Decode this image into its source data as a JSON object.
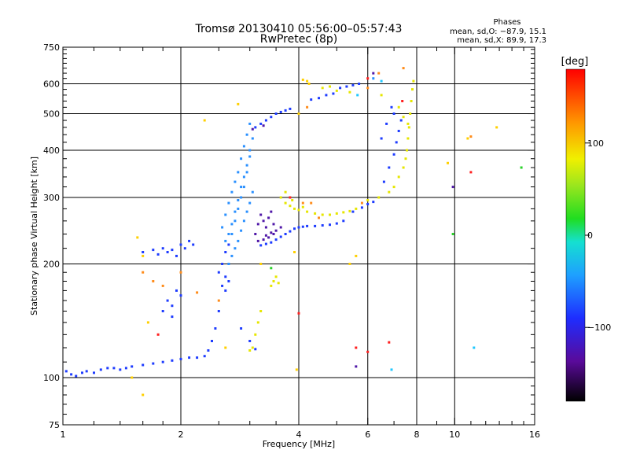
{
  "chart_data": {
    "type": "scatter",
    "title": "Tromsø 20130410 05:56:00–05:57:43",
    "subtitle": "RwPretec (8p)",
    "xlabel": "Frequency [MHz]",
    "ylabel": "Stationary phase Virtual Height [km]",
    "x_scale": "log",
    "y_scale": "log",
    "xlim": [
      1,
      16
    ],
    "ylim": [
      75,
      750
    ],
    "x_major_ticks": [
      1,
      2,
      4,
      6,
      8,
      10,
      16
    ],
    "y_major_ticks": [
      75,
      100,
      200,
      300,
      400,
      500,
      600,
      750
    ],
    "grid_x": [
      2,
      4,
      6,
      8,
      10
    ],
    "grid_y": [
      100,
      200,
      300,
      400,
      500,
      600
    ],
    "grid": true,
    "phase_box": {
      "title": "Phases",
      "lines": [
        "mean, sd,O: −87.9, 15.1",
        "mean, sd,X:  89.9, 17.3"
      ]
    },
    "colorbar": {
      "label": "[deg]",
      "range": [
        -180,
        180
      ],
      "ticks": [
        100,
        0,
        -100
      ],
      "tick_labels": [
        "100",
        "0",
        "−100"
      ]
    },
    "series": [
      {
        "color": "#1e3cff",
        "phase": -95,
        "points": [
          [
            1.02,
            104
          ],
          [
            1.05,
            102
          ],
          [
            1.08,
            101
          ],
          [
            1.12,
            103
          ],
          [
            1.15,
            104
          ],
          [
            1.2,
            103
          ],
          [
            1.25,
            105
          ],
          [
            1.3,
            106
          ],
          [
            1.35,
            106
          ],
          [
            1.4,
            105
          ],
          [
            1.45,
            106
          ],
          [
            1.5,
            107
          ],
          [
            1.6,
            108
          ],
          [
            1.7,
            109
          ],
          [
            1.8,
            110
          ],
          [
            1.9,
            111
          ],
          [
            2.0,
            112
          ],
          [
            2.1,
            113
          ],
          [
            2.2,
            113
          ],
          [
            2.3,
            114
          ],
          [
            2.35,
            118
          ],
          [
            2.4,
            125
          ],
          [
            2.45,
            135
          ],
          [
            2.5,
            150
          ],
          [
            2.55,
            175
          ],
          [
            2.6,
            185
          ],
          [
            2.5,
            190
          ],
          [
            2.55,
            200
          ],
          [
            2.6,
            215
          ],
          [
            2.65,
            225
          ],
          [
            2.6,
            170
          ],
          [
            2.65,
            180
          ],
          [
            1.6,
            215
          ],
          [
            1.7,
            218
          ],
          [
            1.75,
            212
          ],
          [
            1.8,
            220
          ],
          [
            1.85,
            215
          ],
          [
            1.9,
            218
          ],
          [
            1.95,
            210
          ],
          [
            2.0,
            225
          ],
          [
            2.05,
            220
          ],
          [
            2.1,
            230
          ],
          [
            2.15,
            225
          ],
          [
            1.85,
            160
          ],
          [
            1.9,
            155
          ],
          [
            1.95,
            170
          ],
          [
            2.0,
            165
          ],
          [
            1.8,
            150
          ],
          [
            1.9,
            145
          ],
          [
            2.85,
            135
          ],
          [
            3.0,
            125
          ],
          [
            3.1,
            119
          ],
          [
            3.2,
            224
          ],
          [
            3.3,
            226
          ],
          [
            3.4,
            228
          ],
          [
            3.5,
            232
          ],
          [
            3.6,
            236
          ],
          [
            3.7,
            240
          ],
          [
            3.8,
            244
          ],
          [
            3.9,
            248
          ],
          [
            4.0,
            250
          ],
          [
            4.1,
            251
          ],
          [
            4.2,
            252
          ],
          [
            4.4,
            252
          ],
          [
            4.6,
            253
          ],
          [
            4.8,
            254
          ],
          [
            5.0,
            256
          ],
          [
            5.2,
            260
          ],
          [
            5.5,
            275
          ],
          [
            5.8,
            282
          ],
          [
            6.0,
            288
          ],
          [
            6.2,
            292
          ],
          [
            3.1,
            460
          ],
          [
            3.2,
            470
          ],
          [
            3.3,
            480
          ],
          [
            3.4,
            490
          ],
          [
            3.5,
            500
          ],
          [
            3.6,
            505
          ],
          [
            3.7,
            510
          ],
          [
            3.8,
            515
          ],
          [
            4.3,
            545
          ],
          [
            4.5,
            550
          ],
          [
            4.7,
            560
          ],
          [
            4.9,
            565
          ],
          [
            5.1,
            585
          ],
          [
            5.3,
            590
          ],
          [
            5.5,
            595
          ],
          [
            5.7,
            600
          ],
          [
            6.6,
            330
          ],
          [
            6.8,
            360
          ],
          [
            7.0,
            390
          ],
          [
            7.1,
            420
          ],
          [
            7.2,
            450
          ],
          [
            7.3,
            480
          ],
          [
            7.0,
            500
          ],
          [
            6.9,
            520
          ],
          [
            6.7,
            470
          ],
          [
            6.5,
            430
          ]
        ]
      },
      {
        "color": "#2a90ff",
        "phase": -70,
        "points": [
          [
            2.55,
            250
          ],
          [
            2.6,
            270
          ],
          [
            2.65,
            290
          ],
          [
            2.7,
            310
          ],
          [
            2.75,
            330
          ],
          [
            2.8,
            350
          ],
          [
            2.85,
            380
          ],
          [
            2.9,
            410
          ],
          [
            2.95,
            440
          ],
          [
            3.0,
            470
          ],
          [
            2.7,
            240
          ],
          [
            2.75,
            260
          ],
          [
            2.8,
            280
          ],
          [
            2.85,
            300
          ],
          [
            2.9,
            320
          ],
          [
            2.95,
            350
          ],
          [
            3.0,
            400
          ],
          [
            3.05,
            430
          ],
          [
            2.65,
            200
          ],
          [
            2.7,
            210
          ],
          [
            2.75,
            220
          ],
          [
            2.8,
            230
          ],
          [
            2.85,
            245
          ],
          [
            2.9,
            260
          ],
          [
            2.95,
            275
          ],
          [
            3.0,
            290
          ],
          [
            3.05,
            310
          ],
          [
            2.6,
            230
          ],
          [
            2.65,
            240
          ],
          [
            2.7,
            255
          ],
          [
            2.75,
            275
          ],
          [
            2.8,
            295
          ],
          [
            2.85,
            320
          ],
          [
            2.9,
            340
          ],
          [
            2.95,
            365
          ],
          [
            3.0,
            385
          ],
          [
            6.2,
            620
          ]
        ]
      },
      {
        "color": "#5018a8",
        "phase": -140,
        "points": [
          [
            3.1,
            240
          ],
          [
            3.15,
            255
          ],
          [
            3.2,
            270
          ],
          [
            3.25,
            260
          ],
          [
            3.3,
            250
          ],
          [
            3.35,
            265
          ],
          [
            3.4,
            275
          ],
          [
            3.45,
            255
          ],
          [
            3.5,
            245
          ],
          [
            3.3,
            238
          ],
          [
            3.4,
            242
          ],
          [
            3.6,
            250
          ],
          [
            3.15,
            230
          ],
          [
            3.25,
            232
          ],
          [
            3.35,
            235
          ],
          [
            3.45,
            240
          ],
          [
            5.6,
            107
          ],
          [
            9.9,
            320
          ],
          [
            6.2,
            640
          ],
          [
            3.05,
            455
          ],
          [
            3.25,
            465
          ]
        ]
      },
      {
        "color": "#e6e600",
        "phase": 110,
        "points": [
          [
            3.6,
            300
          ],
          [
            3.7,
            290
          ],
          [
            3.8,
            285
          ],
          [
            3.9,
            280
          ],
          [
            4.0,
            278
          ],
          [
            4.2,
            275
          ],
          [
            4.4,
            272
          ],
          [
            4.6,
            270
          ],
          [
            4.8,
            270
          ],
          [
            5.0,
            272
          ],
          [
            5.2,
            274
          ],
          [
            5.4,
            276
          ],
          [
            5.6,
            280
          ],
          [
            6.0,
            295
          ],
          [
            6.4,
            300
          ],
          [
            6.8,
            310
          ],
          [
            7.0,
            320
          ],
          [
            7.2,
            340
          ],
          [
            7.4,
            360
          ],
          [
            7.5,
            380
          ],
          [
            7.55,
            400
          ],
          [
            7.6,
            430
          ],
          [
            7.65,
            460
          ],
          [
            7.7,
            500
          ],
          [
            7.75,
            540
          ],
          [
            7.8,
            580
          ],
          [
            7.85,
            610
          ],
          [
            3.4,
            175
          ],
          [
            3.45,
            180
          ],
          [
            3.5,
            185
          ],
          [
            3.55,
            178
          ],
          [
            3.2,
            150
          ],
          [
            3.15,
            140
          ],
          [
            3.1,
            130
          ],
          [
            3.05,
            120
          ],
          [
            3.0,
            118
          ],
          [
            4.6,
            585
          ],
          [
            4.8,
            590
          ],
          [
            5.0,
            575
          ],
          [
            5.4,
            570
          ],
          [
            6.5,
            560
          ],
          [
            7.2,
            520
          ],
          [
            7.4,
            490
          ],
          [
            7.6,
            470
          ],
          [
            3.7,
            310
          ],
          [
            3.85,
            295
          ],
          [
            4.1,
            283
          ]
        ]
      },
      {
        "color": "#ffd000",
        "phase": 90,
        "points": [
          [
            1.55,
            235
          ],
          [
            1.6,
            210
          ],
          [
            2.8,
            530
          ],
          [
            2.3,
            480
          ],
          [
            9.6,
            370
          ],
          [
            10.8,
            430
          ],
          [
            12.8,
            460
          ],
          [
            4.1,
            615
          ],
          [
            4.2,
            610
          ],
          [
            4.25,
            600
          ],
          [
            4.0,
            500
          ],
          [
            5.4,
            200
          ],
          [
            5.6,
            210
          ],
          [
            3.2,
            200
          ],
          [
            1.65,
            140
          ],
          [
            2.6,
            120
          ],
          [
            1.5,
            100
          ],
          [
            1.6,
            90
          ],
          [
            3.9,
            215
          ],
          [
            3.95,
            105
          ]
        ]
      },
      {
        "color": "#ff8c1a",
        "phase": 140,
        "points": [
          [
            1.6,
            190
          ],
          [
            1.7,
            180
          ],
          [
            1.8,
            175
          ],
          [
            2.0,
            190
          ],
          [
            2.2,
            168
          ],
          [
            2.5,
            160
          ],
          [
            4.1,
            290
          ],
          [
            4.3,
            290
          ],
          [
            4.5,
            265
          ],
          [
            5.8,
            290
          ],
          [
            6.4,
            640
          ],
          [
            7.4,
            660
          ],
          [
            4.2,
            520
          ],
          [
            11.0,
            435
          ],
          [
            6.0,
            585
          ]
        ]
      },
      {
        "color": "#ff2020",
        "phase": 170,
        "points": [
          [
            1.75,
            130
          ],
          [
            5.6,
            120
          ],
          [
            3.8,
            300
          ],
          [
            6.0,
            620
          ],
          [
            11.0,
            350
          ],
          [
            6.8,
            124
          ],
          [
            6.0,
            117
          ],
          [
            4.0,
            148
          ],
          [
            7.35,
            540
          ]
        ]
      },
      {
        "color": "#2ad22a",
        "phase": 10,
        "points": [
          [
            3.4,
            195
          ],
          [
            14.8,
            360
          ],
          [
            9.9,
            240
          ]
        ]
      },
      {
        "color": "#20c8ff",
        "phase": -40,
        "points": [
          [
            6.5,
            610
          ],
          [
            6.9,
            105
          ],
          [
            11.2,
            120
          ],
          [
            5.65,
            560
          ]
        ]
      }
    ]
  }
}
